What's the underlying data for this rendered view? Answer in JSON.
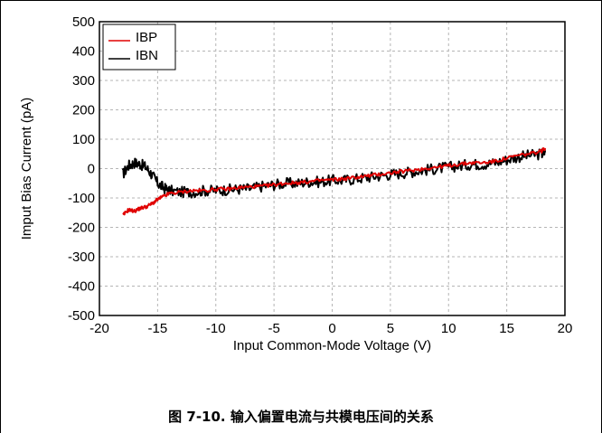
{
  "caption": "图 7-10. 输入偏置电流与共模电压间的关系",
  "chart_data": {
    "type": "line",
    "title": "",
    "xlabel": "Input Common-Mode Voltage (V)",
    "ylabel": "Imput Bias Current (pA)",
    "xlim": [
      -20,
      20
    ],
    "ylim": [
      -500,
      500
    ],
    "xticks": [
      -20,
      -15,
      -10,
      -5,
      0,
      5,
      10,
      15,
      20
    ],
    "yticks": [
      500,
      400,
      300,
      200,
      100,
      0,
      -100,
      -200,
      -300,
      -400,
      -500
    ],
    "xtick_labels": [
      "-20",
      "-15",
      "-10",
      "-5",
      "0",
      "5",
      "10",
      "15",
      "20"
    ],
    "ytick_labels": [
      "500",
      "400",
      "300",
      "200",
      "100",
      "0",
      "-100",
      "-200",
      "-300",
      "-400",
      "-500"
    ],
    "grid": true,
    "legend_position": "top-left",
    "series": [
      {
        "name": "IBP",
        "color": "#e00000",
        "x": [
          -18.0,
          -17.5,
          -17.0,
          -16.5,
          -16.0,
          -15.5,
          -15.0,
          -14.5,
          -14.0,
          -13.0,
          -12.0,
          -11.0,
          -10.0,
          -9.0,
          -8.0,
          -7.0,
          -6.0,
          -5.0,
          -4.0,
          -3.0,
          -2.0,
          -1.0,
          0.0,
          1.0,
          2.0,
          3.0,
          4.0,
          5.0,
          6.0,
          7.0,
          8.0,
          9.0,
          10.0,
          11.0,
          12.0,
          13.0,
          14.0,
          15.0,
          16.0,
          17.0,
          18.0,
          18.3
        ],
        "y": [
          -160,
          -140,
          -145,
          -135,
          -130,
          -120,
          -105,
          -95,
          -85,
          -80,
          -75,
          -75,
          -70,
          -70,
          -65,
          -62,
          -60,
          -55,
          -50,
          -48,
          -45,
          -40,
          -38,
          -35,
          -30,
          -25,
          -20,
          -15,
          -10,
          -5,
          0,
          5,
          10,
          15,
          20,
          20,
          25,
          35,
          45,
          50,
          60,
          70
        ]
      },
      {
        "name": "IBN",
        "color": "#000000",
        "x": [
          -18.0,
          -17.5,
          -17.0,
          -16.5,
          -16.0,
          -15.5,
          -15.0,
          -14.5,
          -14.0,
          -13.0,
          -12.0,
          -11.0,
          -10.0,
          -9.0,
          -8.0,
          -7.0,
          -6.0,
          -5.0,
          -4.0,
          -3.0,
          -2.0,
          -1.0,
          0.0,
          1.0,
          2.0,
          3.0,
          4.0,
          5.0,
          6.0,
          7.0,
          8.0,
          9.0,
          10.0,
          11.0,
          12.0,
          13.0,
          14.0,
          15.0,
          16.0,
          17.0,
          18.0,
          18.3
        ],
        "y": [
          -20,
          10,
          20,
          15,
          5,
          -20,
          -50,
          -65,
          -75,
          -80,
          -80,
          -75,
          -75,
          -72,
          -70,
          -68,
          -60,
          -55,
          -50,
          -50,
          -45,
          -45,
          -40,
          -40,
          -35,
          -30,
          -25,
          -20,
          -15,
          -10,
          -5,
          0,
          5,
          10,
          15,
          15,
          20,
          30,
          40,
          45,
          50,
          55
        ]
      }
    ]
  }
}
